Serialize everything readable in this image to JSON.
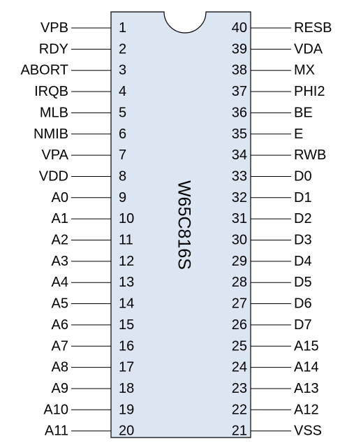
{
  "chip": {
    "name": "W65C816S",
    "body_color": "#dce6f2",
    "outline_color": "#000000"
  },
  "left_pins": [
    {
      "number": "1",
      "label": "VPB"
    },
    {
      "number": "2",
      "label": "RDY"
    },
    {
      "number": "3",
      "label": "ABORT"
    },
    {
      "number": "4",
      "label": "IRQB"
    },
    {
      "number": "5",
      "label": "MLB"
    },
    {
      "number": "6",
      "label": "NMIB"
    },
    {
      "number": "7",
      "label": "VPA"
    },
    {
      "number": "8",
      "label": "VDD"
    },
    {
      "number": "9",
      "label": "A0"
    },
    {
      "number": "10",
      "label": "A1"
    },
    {
      "number": "11",
      "label": "A2"
    },
    {
      "number": "12",
      "label": "A3"
    },
    {
      "number": "13",
      "label": "A4"
    },
    {
      "number": "14",
      "label": "A5"
    },
    {
      "number": "15",
      "label": "A6"
    },
    {
      "number": "16",
      "label": "A7"
    },
    {
      "number": "17",
      "label": "A8"
    },
    {
      "number": "18",
      "label": "A9"
    },
    {
      "number": "19",
      "label": "A10"
    },
    {
      "number": "20",
      "label": "A11"
    }
  ],
  "right_pins": [
    {
      "number": "40",
      "label": "RESB"
    },
    {
      "number": "39",
      "label": "VDA"
    },
    {
      "number": "38",
      "label": "MX"
    },
    {
      "number": "37",
      "label": "PHI2"
    },
    {
      "number": "36",
      "label": "BE"
    },
    {
      "number": "35",
      "label": "E"
    },
    {
      "number": "34",
      "label": "RWB"
    },
    {
      "number": "33",
      "label": "D0"
    },
    {
      "number": "32",
      "label": "D1"
    },
    {
      "number": "31",
      "label": "D2"
    },
    {
      "number": "30",
      "label": "D3"
    },
    {
      "number": "29",
      "label": "D4"
    },
    {
      "number": "28",
      "label": "D5"
    },
    {
      "number": "27",
      "label": "D6"
    },
    {
      "number": "26",
      "label": "D7"
    },
    {
      "number": "25",
      "label": "A15"
    },
    {
      "number": "24",
      "label": "A14"
    },
    {
      "number": "23",
      "label": "A13"
    },
    {
      "number": "22",
      "label": "A12"
    },
    {
      "number": "21",
      "label": "VSS"
    }
  ]
}
